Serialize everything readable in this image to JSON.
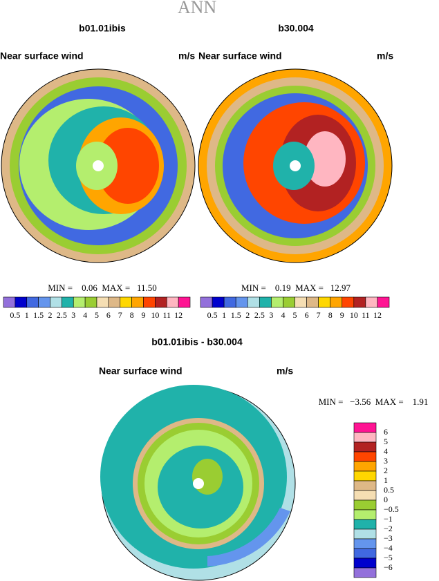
{
  "header": {
    "title": "ANN"
  },
  "panels": [
    {
      "title": "b01.01ibis",
      "left": "Near surface wind",
      "right": "m/s",
      "minmax": "MIN =    0.06  MAX =   11.50"
    },
    {
      "title": "b30.004",
      "left": "Near surface wind",
      "right": "m/s",
      "minmax": "MIN =    0.19  MAX =   12.97"
    }
  ],
  "colorbar": {
    "labels": [
      "0.5",
      "1",
      "1.5",
      "2",
      "2.5",
      "3",
      "4",
      "5",
      "6",
      "7",
      "8",
      "9",
      "10",
      "11",
      "12"
    ],
    "colors": [
      "#9370db",
      "#0000cd",
      "#4169e1",
      "#6495ed",
      "#b0e0e6",
      "#20b2aa",
      "#b4ee6e",
      "#9acd32",
      "#f5deb3",
      "#deb887",
      "#ffd700",
      "#ffa500",
      "#ff4500",
      "#b22222",
      "#ffb6c1",
      "#ff1493"
    ]
  },
  "diff": {
    "title": "b01.01ibis - b30.004",
    "left": "Near surface wind",
    "right": "m/s",
    "minmax": "MIN =   −3.56  MAX =    1.91",
    "labels": [
      "6",
      "5",
      "4",
      "3",
      "2",
      "1",
      "0.5",
      "0",
      "−0.5",
      "−1",
      "−2",
      "−3",
      "−4",
      "−5",
      "−6"
    ],
    "colors": [
      "#ff1493",
      "#ffb6c1",
      "#b22222",
      "#ff4500",
      "#ffa500",
      "#ffd700",
      "#deb887",
      "#f5deb3",
      "#9acd32",
      "#b4ee6e",
      "#20b2aa",
      "#b0e0e6",
      "#6495ed",
      "#4169e1",
      "#0000cd",
      "#9370db"
    ]
  }
}
